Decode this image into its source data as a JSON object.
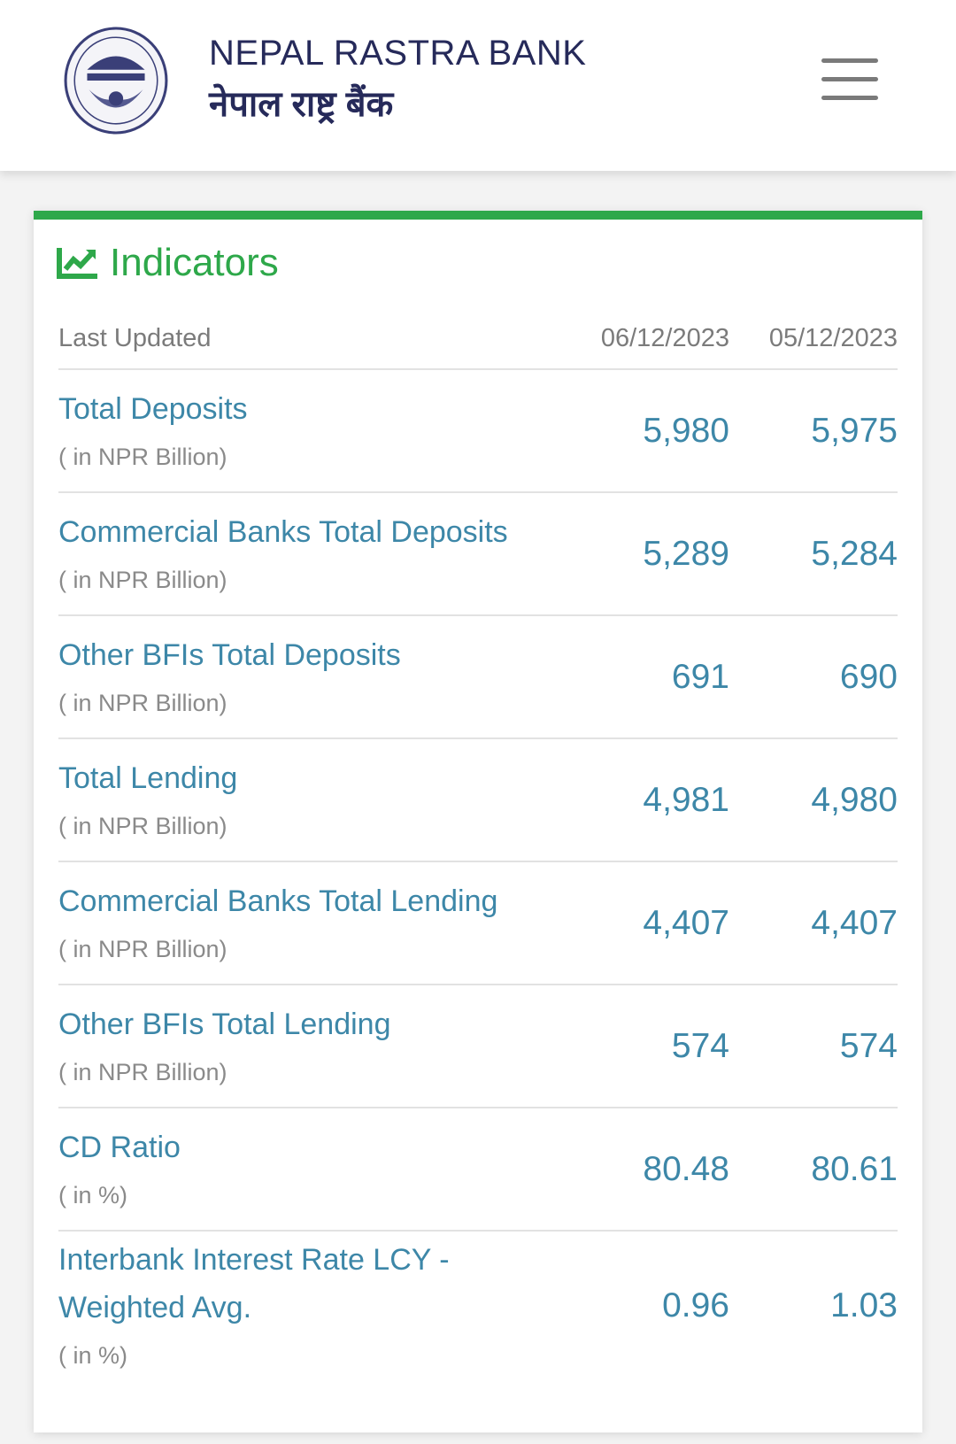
{
  "header": {
    "brand_en": "NEPAL RASTRA BANK",
    "brand_np": "नेपाल राष्ट्र बैंक",
    "logo": "nepal-rastra-bank-seal",
    "menu_icon": "hamburger-icon"
  },
  "card": {
    "title": "Indicators",
    "title_icon": "line-chart-icon",
    "accent": "#2ea84a",
    "last_updated_label": "Last Updated",
    "dates": [
      "06/12/2023",
      "05/12/2023"
    ],
    "rows": [
      {
        "name": "Total Deposits",
        "unit": "( in NPR Billion)",
        "v1": "5,980",
        "v2": "5,975"
      },
      {
        "name": "Commercial Banks Total Deposits",
        "unit": "( in NPR Billion)",
        "v1": "5,289",
        "v2": "5,284"
      },
      {
        "name": "Other BFIs Total Deposits",
        "unit": "( in NPR Billion)",
        "v1": "691",
        "v2": "690"
      },
      {
        "name": "Total Lending",
        "unit": "( in NPR Billion)",
        "v1": "4,981",
        "v2": "4,980"
      },
      {
        "name": "Commercial Banks Total Lending",
        "unit": "( in NPR Billion)",
        "v1": "4,407",
        "v2": "4,407"
      },
      {
        "name": "Other BFIs Total Lending",
        "unit": "( in NPR Billion)",
        "v1": "574",
        "v2": "574"
      },
      {
        "name": "CD Ratio",
        "unit": "( in %)",
        "v1": "80.48",
        "v2": "80.61"
      },
      {
        "name": "Interbank Interest Rate LCY - Weighted Avg.",
        "unit": "( in %)",
        "v1": "0.96",
        "v2": "1.03"
      }
    ]
  }
}
